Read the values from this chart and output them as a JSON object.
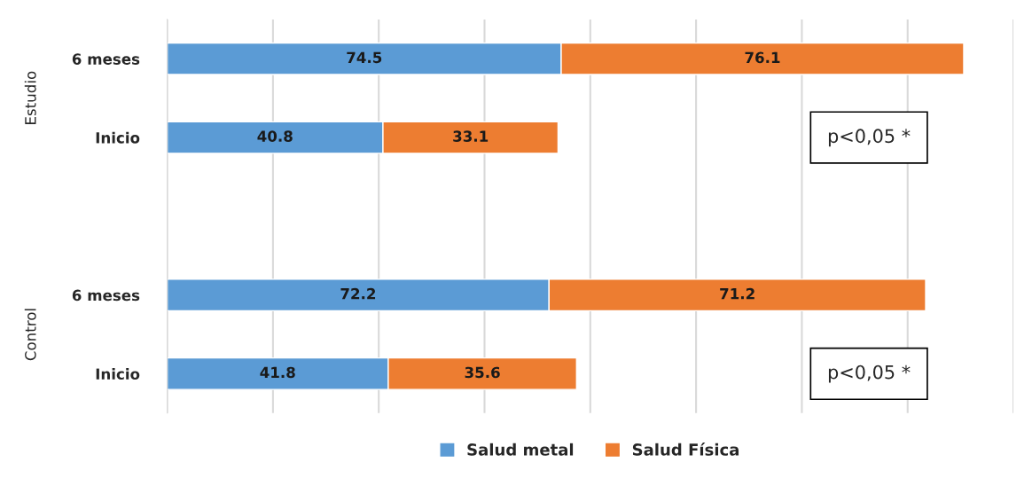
{
  "chart_data": {
    "type": "bar",
    "orientation": "horizontal",
    "stacked": true,
    "data_labels": true,
    "categories": [
      "6 meses",
      "Inicio",
      null,
      "6 meses",
      "Inicio"
    ],
    "series": [
      {
        "name": "Salud metal",
        "color": "#5b9bd5",
        "values": [
          74.5,
          40.8,
          null,
          72.2,
          41.8
        ]
      },
      {
        "name": "Salud Física",
        "color": "#ed7d31",
        "values": [
          76.1,
          33.1,
          null,
          71.2,
          35.6
        ]
      }
    ],
    "xlim": [
      0,
      160
    ],
    "xticks": [
      {
        "value": 0,
        "label": null
      },
      {
        "value": 20,
        "label": null
      },
      {
        "value": 40,
        "label": null
      },
      {
        "value": 60,
        "label": null
      },
      {
        "value": 80,
        "label": null
      },
      {
        "value": 100,
        "label": null
      },
      {
        "value": 120,
        "label": null
      },
      {
        "value": 140,
        "label": null
      },
      {
        "value": 160,
        "label": null
      }
    ],
    "grid": "x",
    "legend": "bottom",
    "annotations": [
      "Estudio",
      "Control",
      "p<0,05 *",
      "p<0,05 *"
    ]
  }
}
